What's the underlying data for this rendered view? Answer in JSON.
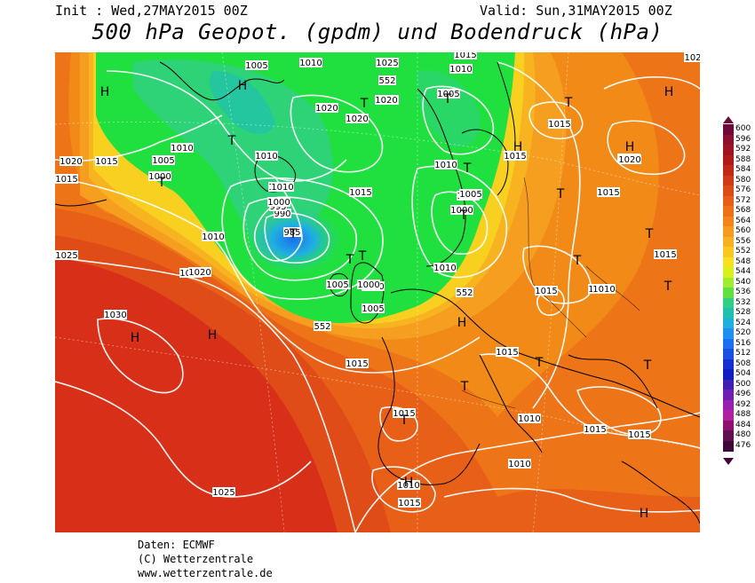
{
  "header": {
    "init": "Init : Wed,27MAY2015 00Z",
    "valid": "Valid: Sun,31MAY2015 00Z",
    "title": "500 hPa Geopot. (gpdm) und Bodendruck (hPa)"
  },
  "credits": {
    "line1": "Daten: ECMWF",
    "line2": "(C) Wetterzentrale",
    "line3": "www.wetterzentrale.de"
  },
  "legend": {
    "labels": [
      "600",
      "596",
      "592",
      "588",
      "584",
      "580",
      "576",
      "572",
      "568",
      "564",
      "560",
      "556",
      "552",
      "548",
      "544",
      "540",
      "536",
      "532",
      "528",
      "524",
      "520",
      "516",
      "512",
      "508",
      "504",
      "500",
      "496",
      "492",
      "488",
      "484",
      "480",
      "476"
    ],
    "colors": [
      "#6e0a3a",
      "#8c1030",
      "#9e1420",
      "#b01a18",
      "#c02818",
      "#d03a18",
      "#dc4c18",
      "#e65e18",
      "#ee7018",
      "#f28418",
      "#f69a20",
      "#f8b020",
      "#f8c820",
      "#f8e020",
      "#d8f020",
      "#a0ec30",
      "#60e040",
      "#30d080",
      "#20c0b0",
      "#20b0e0",
      "#2090f0",
      "#1c70f0",
      "#1850e0",
      "#1430d0",
      "#1020c0",
      "#4020b0",
      "#7020b0",
      "#9820b0",
      "#b020a0",
      "#901070",
      "#601050",
      "#400838"
    ]
  },
  "map": {
    "pressure_labels": [
      "1005",
      "1010",
      "1025",
      "1015",
      "1020",
      "1010",
      "1020",
      "552",
      "1020",
      "1020",
      "1005",
      "1010",
      "1015",
      "1005",
      "1000",
      "1010",
      "1005",
      "1010",
      "1020",
      "1015",
      "1015",
      "1010",
      "1010",
      "1000",
      "1005",
      "985",
      "990",
      "995",
      "1000",
      "1010",
      "1010",
      "1015",
      "1005",
      "1000",
      "1005",
      "1000",
      "1010",
      "552",
      "552",
      "1025",
      "1020",
      "1030",
      "1015",
      "1015",
      "1015",
      "1015",
      "1015",
      "1015",
      "1015",
      "1010",
      "1015",
      "1010",
      "1015",
      "1025",
      "1010",
      "1015",
      "1015",
      "1015",
      "1010",
      "102",
      "1020"
    ],
    "highs": [
      "H",
      "H",
      "H",
      "H",
      "H",
      "H",
      "H",
      "H",
      "H",
      "H"
    ],
    "lows": [
      "T",
      "T",
      "T",
      "T",
      "T",
      "T",
      "T",
      "T",
      "T",
      "T",
      "T",
      "T",
      "T",
      "T",
      "T",
      "T",
      "T",
      "T"
    ]
  },
  "colors": {
    "trough_green": "#20e040",
    "ridge_red": "#d83018"
  }
}
